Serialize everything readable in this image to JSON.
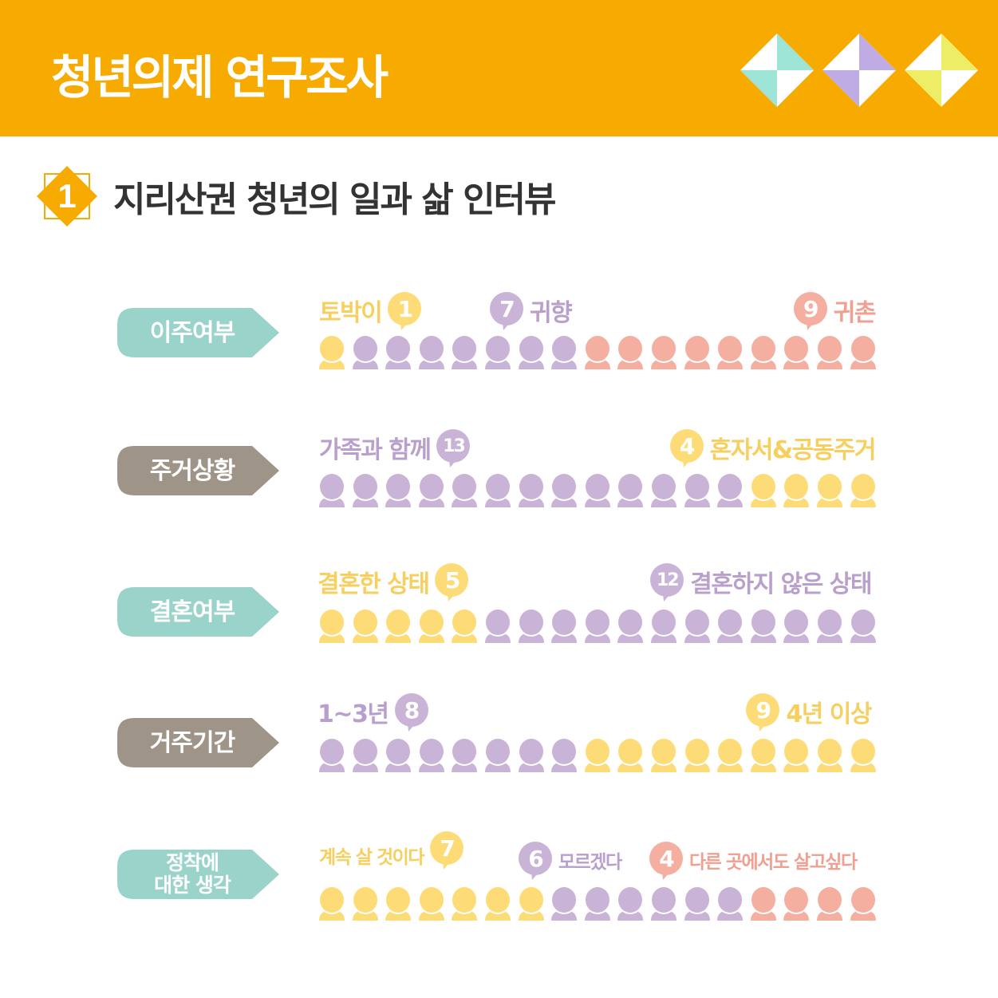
{
  "header": {
    "title": "청년의제 연구조사",
    "diamond_colors": [
      "#9EE5D8",
      "#C0ACE5",
      "#EEEE66"
    ]
  },
  "section": {
    "number": "1",
    "title": "지리산권 청년의 일과 삶 인터뷰"
  },
  "colors": {
    "accent": "#F7AB00",
    "teal_tag": "#9AD3C9",
    "gray_tag": "#9E9488",
    "yellow": "#FDDC77",
    "purple": "#C9B3D6",
    "pink": "#F4AFA0"
  },
  "chart_data": [
    {
      "type": "pictogram",
      "label": "이주여부",
      "tag_color": "#9AD3C9",
      "segments": [
        {
          "label": "토박이",
          "count": 1,
          "color": "#FDDC77"
        },
        {
          "label": "귀향",
          "count": 7,
          "color": "#C9B3D6"
        },
        {
          "label": "귀촌",
          "count": 9,
          "color": "#F4AFA0"
        }
      ]
    },
    {
      "type": "pictogram",
      "label": "주거상황",
      "tag_color": "#9E9488",
      "segments": [
        {
          "label": "가족과 함께",
          "count": 13,
          "color": "#C9B3D6"
        },
        {
          "label": "혼자서&공동주거",
          "count": 4,
          "color": "#FDDC77"
        }
      ]
    },
    {
      "type": "pictogram",
      "label": "결혼여부",
      "tag_color": "#9AD3C9",
      "segments": [
        {
          "label": "결혼한 상태",
          "count": 5,
          "color": "#FDDC77"
        },
        {
          "label": "결혼하지 않은 상태",
          "count": 12,
          "color": "#C9B3D6"
        }
      ]
    },
    {
      "type": "pictogram",
      "label": "거주기간",
      "tag_color": "#9E9488",
      "segments": [
        {
          "label": "1~3년",
          "count": 8,
          "color": "#C9B3D6"
        },
        {
          "label": "4년 이상",
          "count": 9,
          "color": "#FDDC77"
        }
      ]
    },
    {
      "type": "pictogram",
      "label": "정착에\n대한 생각",
      "tag_color": "#9AD3C9",
      "segments": [
        {
          "label": "계속 살 것이다",
          "count": 7,
          "color": "#FDDC77"
        },
        {
          "label": "모르겠다",
          "count": 6,
          "color": "#C9B3D6"
        },
        {
          "label": "다른 곳에서도 살고싶다",
          "count": 4,
          "color": "#F4AFA0"
        }
      ]
    }
  ]
}
